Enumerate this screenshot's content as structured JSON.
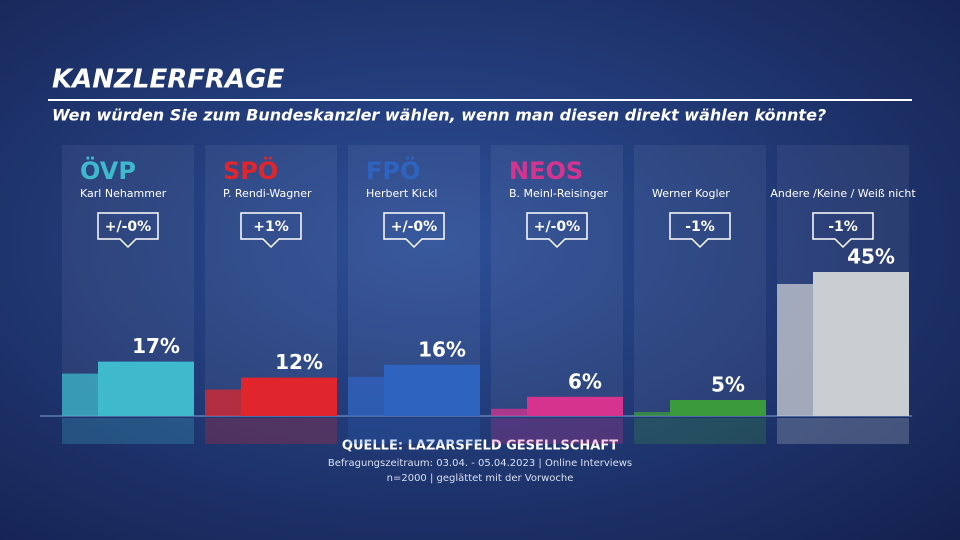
{
  "chart_data": {
    "type": "bar",
    "title": "KANZLERFRAGE",
    "subtitle": "Wen würden Sie zum Bundeskanzler wählen, wenn man diesen direkt wählen könnte?",
    "categories": [
      "ÖVP",
      "SPÖ",
      "FPÖ",
      "NEOS",
      null,
      null
    ],
    "candidates": [
      "Karl Nehammer",
      "P. Rendi-Wagner",
      "Herbert Kickl",
      "B. Meinl-Reisinger",
      "Werner Kogler",
      "Andere /Keine / Weiß nicht"
    ],
    "changes": [
      "+/-0%",
      "+1%",
      "+/-0%",
      "+/-0%",
      "-1%",
      "-1%"
    ],
    "values": [
      17,
      12,
      16,
      6,
      5,
      45
    ],
    "value_labels": [
      "17%",
      "12%",
      "16%",
      "6%",
      "5%",
      "45%"
    ],
    "colors": [
      "#3fb9cc",
      "#e0262c",
      "#2f63c0",
      "#d6338f",
      "#3b9b3c",
      "#c9ced3"
    ],
    "ylim": [
      0,
      50
    ],
    "source": "QUELLE:  LAZARSFELD GESELLSCHAFT",
    "notes": [
      "Befragungszeitraum: 03.04. - 05.04.2023 | Online Interviews",
      "n=2000 | geglättet mit der Vorwoche"
    ]
  }
}
